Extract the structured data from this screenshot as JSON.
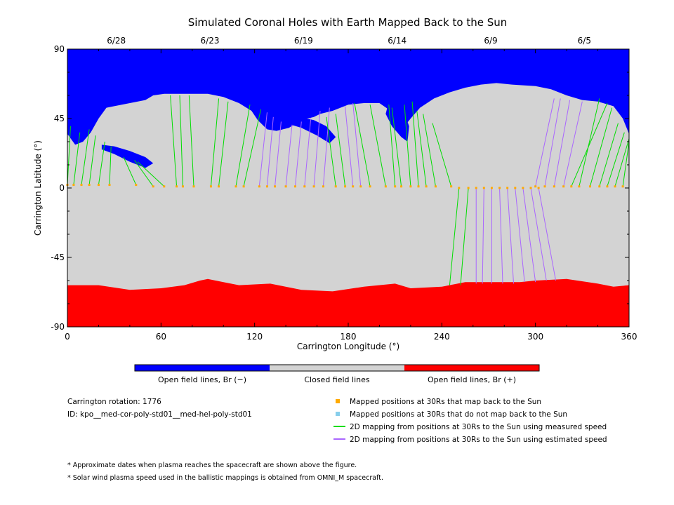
{
  "chart_data": {
    "type": "map",
    "title": "Simulated Coronal Holes with Earth Mapped Back to the Sun",
    "xlabel": "Carrington Longitude (°)",
    "ylabel": "Carrington Latitude (°)",
    "xlim": [
      0,
      360
    ],
    "ylim": [
      -90,
      90
    ],
    "x_ticks": [
      0,
      60,
      120,
      180,
      240,
      300,
      360
    ],
    "y_ticks": [
      -90,
      -45,
      0,
      45,
      90
    ],
    "top_dates": [
      {
        "label": "6/28",
        "lon": 30
      },
      {
        "label": "6/23",
        "lon": 90
      },
      {
        "label": "6/19",
        "lon": 150
      },
      {
        "label": "6/14",
        "lon": 210
      },
      {
        "label": "6/9",
        "lon": 270
      },
      {
        "label": "6/5",
        "lon": 330
      }
    ],
    "colorbar": [
      {
        "label": "Open field lines, Br (−)",
        "color": "#0000ff"
      },
      {
        "label": "Closed field lines",
        "color": "#d3d3d3"
      },
      {
        "label": "Open field lines, Br (+)",
        "color": "#ff0000"
      }
    ],
    "colors": {
      "open_negative": "#0000ff",
      "closed": "#d3d3d3",
      "open_positive": "#ff0000",
      "mapped_point": "#ffaa00",
      "unmapped_point": "#87ceeb",
      "measured_line": "#00dd00",
      "estimated_line": "#aa66ff"
    },
    "legend": [
      {
        "label": "Mapped positions at 30Rs that map back to the Sun",
        "symbol": "square",
        "color": "#ffaa00"
      },
      {
        "label": "Mapped positions at 30Rs that do not map back to the Sun",
        "symbol": "square",
        "color": "#87ceeb"
      },
      {
        "label": "2D mapping from positions at 30Rs to the Sun using measured speed",
        "symbol": "line",
        "color": "#00dd00"
      },
      {
        "label": "2D mapping from positions at 30Rs to the Sun using estimated speed",
        "symbol": "line",
        "color": "#aa66ff"
      }
    ],
    "info": [
      "Carrington rotation: 1776",
      "ID: kpo__med-cor-poly-std01__med-hel-poly-std01"
    ],
    "notes": [
      "* Approximate dates when plasma reaches the spacecraft are shown above the figure.",
      "* Solar wind plasma speed used in the ballistic mappings is obtained from OMNI_M spacecraft."
    ],
    "north_boundary": [
      [
        0,
        35
      ],
      [
        5,
        28
      ],
      [
        10,
        30
      ],
      [
        15,
        36
      ],
      [
        20,
        45
      ],
      [
        25,
        52
      ],
      [
        30,
        53
      ],
      [
        40,
        55
      ],
      [
        50,
        57
      ],
      [
        55,
        60
      ],
      [
        62,
        61
      ],
      [
        75,
        61
      ],
      [
        90,
        61
      ],
      [
        100,
        59
      ],
      [
        110,
        55
      ],
      [
        118,
        50
      ],
      [
        122,
        44
      ],
      [
        128,
        38
      ],
      [
        134,
        37
      ],
      [
        142,
        39
      ],
      [
        150,
        44
      ],
      [
        158,
        46
      ],
      [
        162,
        48
      ],
      [
        170,
        50
      ],
      [
        180,
        54
      ],
      [
        190,
        55
      ],
      [
        200,
        55
      ],
      [
        210,
        48
      ],
      [
        216,
        40
      ],
      [
        220,
        45
      ],
      [
        226,
        52
      ],
      [
        235,
        58
      ],
      [
        245,
        62
      ],
      [
        255,
        65
      ],
      [
        265,
        67
      ],
      [
        275,
        68
      ],
      [
        285,
        67
      ],
      [
        300,
        66
      ],
      [
        310,
        64
      ],
      [
        320,
        60
      ],
      [
        330,
        57
      ],
      [
        340,
        56
      ],
      [
        350,
        53
      ],
      [
        356,
        45
      ],
      [
        360,
        35
      ]
    ],
    "blue_patches": [
      [
        [
          22,
          25
        ],
        [
          30,
          22
        ],
        [
          40,
          17
        ],
        [
          50,
          13
        ],
        [
          55,
          16
        ],
        [
          50,
          20
        ],
        [
          40,
          24
        ],
        [
          30,
          27
        ],
        [
          22,
          28
        ]
      ],
      [
        [
          138,
          45
        ],
        [
          148,
          46
        ],
        [
          158,
          44
        ],
        [
          166,
          40
        ],
        [
          172,
          33
        ],
        [
          168,
          29
        ],
        [
          160,
          34
        ],
        [
          150,
          39
        ],
        [
          140,
          42
        ]
      ],
      [
        [
          204,
          48
        ],
        [
          208,
          40
        ],
        [
          214,
          33
        ],
        [
          218,
          30
        ],
        [
          219,
          40
        ],
        [
          216,
          49
        ],
        [
          210,
          52
        ],
        [
          205,
          52
        ]
      ]
    ],
    "south_boundary": [
      [
        0,
        -63
      ],
      [
        10,
        -63
      ],
      [
        20,
        -63
      ],
      [
        40,
        -66
      ],
      [
        60,
        -65
      ],
      [
        75,
        -63
      ],
      [
        85,
        -60
      ],
      [
        90,
        -59
      ],
      [
        100,
        -61
      ],
      [
        110,
        -63
      ],
      [
        130,
        -62
      ],
      [
        150,
        -66
      ],
      [
        170,
        -67
      ],
      [
        190,
        -64
      ],
      [
        210,
        -62
      ],
      [
        220,
        -65
      ],
      [
        240,
        -64
      ],
      [
        255,
        -61
      ],
      [
        270,
        -61
      ],
      [
        290,
        -61
      ],
      [
        300,
        -60
      ],
      [
        320,
        -59
      ],
      [
        340,
        -62
      ],
      [
        350,
        -64
      ],
      [
        360,
        -63
      ]
    ],
    "mapped_points_lat": 2,
    "mapping_lines": {
      "measured": [
        [
          0,
          2,
          2,
          40
        ],
        [
          4,
          2,
          8,
          36
        ],
        [
          9,
          2,
          14,
          38
        ],
        [
          14,
          2,
          18,
          34
        ],
        [
          20,
          2,
          24,
          30
        ],
        [
          27,
          2,
          28,
          27
        ],
        [
          44,
          2,
          36,
          20
        ],
        [
          55,
          1,
          43,
          18
        ],
        [
          62,
          1,
          45,
          17
        ],
        [
          70,
          1,
          66,
          60
        ],
        [
          74,
          1,
          72,
          60
        ],
        [
          81,
          1,
          78,
          60
        ],
        [
          92,
          1,
          97,
          58
        ],
        [
          97,
          1,
          103,
          56
        ],
        [
          108,
          1,
          117,
          54
        ],
        [
          113,
          1,
          124,
          51
        ],
        [
          172,
          1,
          166,
          46
        ],
        [
          178,
          1,
          172,
          48
        ],
        [
          194,
          1,
          184,
          55
        ],
        [
          204,
          1,
          194,
          54
        ],
        [
          210,
          1,
          206,
          54
        ],
        [
          214,
          1,
          208,
          52
        ],
        [
          220,
          1,
          216,
          54
        ],
        [
          225,
          1,
          221,
          56
        ],
        [
          230,
          1,
          224,
          50
        ],
        [
          236,
          1,
          228,
          48
        ],
        [
          246,
          1,
          234,
          42
        ],
        [
          323,
          1,
          346,
          55
        ],
        [
          328,
          1,
          341,
          58
        ],
        [
          335,
          1,
          349,
          52
        ],
        [
          341,
          1,
          353,
          42
        ],
        [
          346,
          1,
          357,
          36
        ],
        [
          351,
          1,
          360,
          32
        ],
        [
          356,
          1,
          360,
          30
        ],
        [
          257,
          0,
          252,
          -63
        ],
        [
          251,
          0,
          245,
          -63
        ]
      ],
      "estimated": [
        [
          123,
          1,
          128,
          49
        ],
        [
          128,
          1,
          132,
          46
        ],
        [
          133,
          1,
          137,
          43
        ],
        [
          140,
          1,
          144,
          41
        ],
        [
          146,
          1,
          150,
          43
        ],
        [
          152,
          1,
          156,
          45
        ],
        [
          158,
          1,
          162,
          50
        ],
        [
          164,
          1,
          168,
          52
        ],
        [
          183,
          1,
          178,
          53
        ],
        [
          188,
          1,
          183,
          55
        ],
        [
          262,
          0,
          262,
          -62
        ],
        [
          267,
          0,
          266,
          -62
        ],
        [
          272,
          0,
          272,
          -62
        ],
        [
          277,
          0,
          279,
          -62
        ],
        [
          282,
          0,
          286,
          -62
        ],
        [
          287,
          0,
          293,
          -61
        ],
        [
          292,
          0,
          300,
          -61
        ],
        [
          297,
          0,
          307,
          -60
        ],
        [
          302,
          0,
          313,
          -60
        ],
        [
          300,
          1,
          312,
          58
        ],
        [
          306,
          1,
          316,
          58
        ],
        [
          312,
          1,
          322,
          57
        ],
        [
          318,
          1,
          330,
          56
        ]
      ]
    }
  }
}
